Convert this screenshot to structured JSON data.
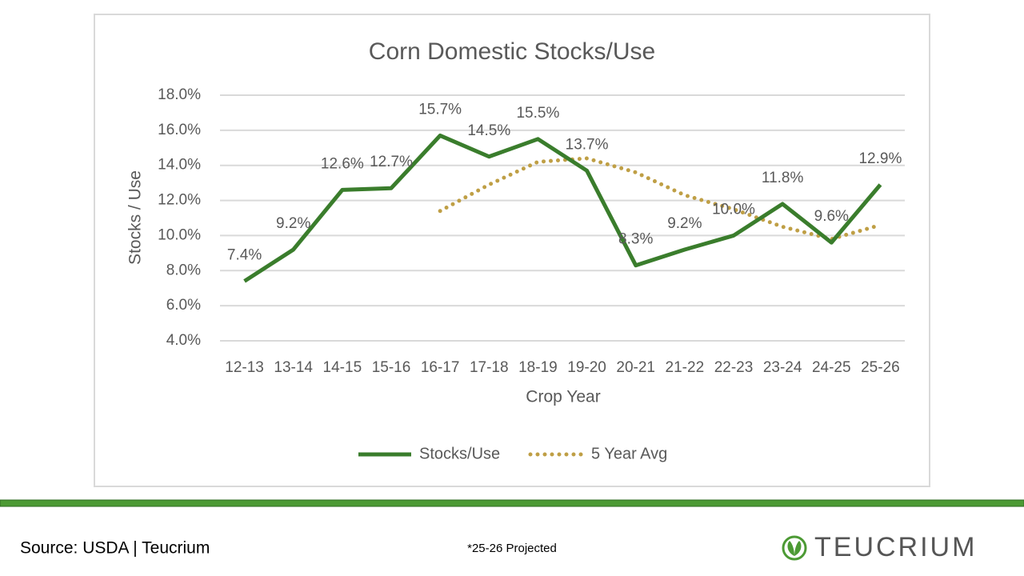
{
  "chart_data": {
    "type": "line",
    "title": "Corn Domestic Stocks/Use",
    "x_label": "Crop Year",
    "y_label": "Stocks / Use",
    "categories": [
      "12-13",
      "13-14",
      "14-15",
      "15-16",
      "16-17",
      "17-18",
      "18-19",
      "19-20",
      "20-21",
      "21-22",
      "22-23",
      "23-24",
      "24-25",
      "25-26"
    ],
    "series": [
      {
        "name": "Stocks/Use",
        "color": "#3a7d2c",
        "style": "solid",
        "values": [
          7.4,
          9.2,
          12.6,
          12.7,
          15.7,
          14.5,
          15.5,
          13.7,
          8.3,
          9.2,
          10.0,
          11.8,
          9.6,
          12.9
        ],
        "value_labels": [
          "7.4%",
          "9.2%",
          "12.6%",
          "12.7%",
          "15.7%",
          "14.5%",
          "15.5%",
          "13.7%",
          "8.3%",
          "9.2%",
          "10.0%",
          "11.8%",
          "9.6%",
          "12.9%"
        ]
      },
      {
        "name": "5 Year Avg",
        "color": "#bf9f45",
        "style": "dotted",
        "values": [
          null,
          null,
          null,
          null,
          11.4,
          12.9,
          14.2,
          14.4,
          13.6,
          12.3,
          11.5,
          10.5,
          9.8,
          10.6
        ]
      }
    ],
    "ylim": [
      4,
      18
    ],
    "yticks": [
      {
        "value": 4,
        "label": "4.0%"
      },
      {
        "value": 6,
        "label": "6.0%"
      },
      {
        "value": 8,
        "label": "8.0%"
      },
      {
        "value": 10,
        "label": "10.0%"
      },
      {
        "value": 12,
        "label": "12.0%"
      },
      {
        "value": 14,
        "label": "14.0%"
      },
      {
        "value": 16,
        "label": "16.0%"
      },
      {
        "value": 18,
        "label": "18.0%"
      }
    ],
    "grid": true,
    "legend": "bottom"
  },
  "footer": {
    "source": "Source: USDA | Teucrium",
    "note": "*25-26 Projected",
    "logo": "TEUCRIUM"
  }
}
